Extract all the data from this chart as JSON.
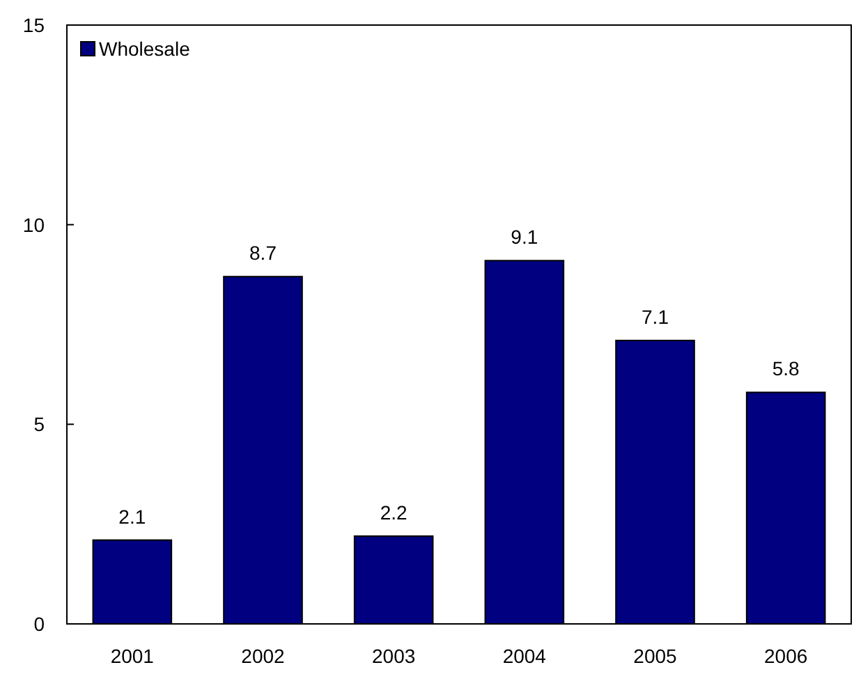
{
  "chart_data": {
    "type": "bar",
    "categories": [
      "2001",
      "2002",
      "2003",
      "2004",
      "2005",
      "2006"
    ],
    "series": [
      {
        "name": "Wholesale",
        "color": "#000080",
        "values": [
          2.1,
          8.7,
          2.2,
          9.1,
          7.1,
          5.8
        ]
      }
    ],
    "ylim": [
      0,
      15
    ],
    "yticks": [
      0,
      5,
      10,
      15
    ],
    "data_labels": true,
    "legend": "top left",
    "grid": false
  }
}
